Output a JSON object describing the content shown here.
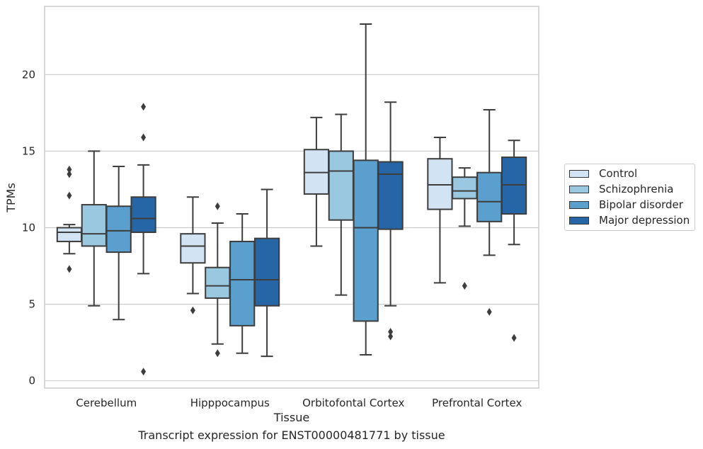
{
  "caption": "Transcript expression for ENST00000481771 by tissue",
  "chart_data": {
    "type": "boxplot",
    "xlabel": "Tissue",
    "ylabel": "TPMs",
    "ylim": [
      -0.4,
      24.2
    ],
    "yticks": [
      0,
      5,
      10,
      15,
      20
    ],
    "grid": "horizontal",
    "legend_position": "right",
    "categories": [
      "Cerebellum",
      "Hipppocampus",
      "Orbitofontal Cortex",
      "Prefrontal Cortex"
    ],
    "series": [
      {
        "name": "Control",
        "color": "#d2e3f3",
        "boxes": [
          {
            "whisker_low": 8.3,
            "q1": 9.1,
            "median": 9.7,
            "q3": 10.0,
            "whisker_high": 10.2,
            "outliers": [
              13.8,
              13.5,
              12.1,
              7.3
            ]
          },
          {
            "whisker_low": 5.7,
            "q1": 7.7,
            "median": 8.8,
            "q3": 9.6,
            "whisker_high": 12.0,
            "outliers": [
              4.6
            ]
          },
          {
            "whisker_low": 8.8,
            "q1": 12.2,
            "median": 13.6,
            "q3": 15.1,
            "whisker_high": 17.2,
            "outliers": []
          },
          {
            "whisker_low": 6.4,
            "q1": 11.2,
            "median": 12.8,
            "q3": 14.5,
            "whisker_high": 15.9,
            "outliers": []
          }
        ]
      },
      {
        "name": "Schizophrenia",
        "color": "#9ac8e0",
        "boxes": [
          {
            "whisker_low": 4.9,
            "q1": 8.8,
            "median": 9.6,
            "q3": 11.5,
            "whisker_high": 15.0,
            "outliers": []
          },
          {
            "whisker_low": 2.4,
            "q1": 5.4,
            "median": 6.2,
            "q3": 7.4,
            "whisker_high": 10.3,
            "outliers": [
              11.4,
              1.8
            ]
          },
          {
            "whisker_low": 5.6,
            "q1": 10.5,
            "median": 13.7,
            "q3": 15.0,
            "whisker_high": 17.4,
            "outliers": []
          },
          {
            "whisker_low": 10.1,
            "q1": 11.9,
            "median": 12.4,
            "q3": 13.3,
            "whisker_high": 13.9,
            "outliers": [
              6.2
            ]
          }
        ]
      },
      {
        "name": "Bipolar disorder",
        "color": "#5a9fcd",
        "boxes": [
          {
            "whisker_low": 4.0,
            "q1": 8.4,
            "median": 9.8,
            "q3": 11.4,
            "whisker_high": 14.0,
            "outliers": []
          },
          {
            "whisker_low": 1.8,
            "q1": 3.6,
            "median": 6.6,
            "q3": 9.1,
            "whisker_high": 10.9,
            "outliers": []
          },
          {
            "whisker_low": 1.7,
            "q1": 3.9,
            "median": 10.0,
            "q3": 14.4,
            "whisker_high": 23.3,
            "outliers": []
          },
          {
            "whisker_low": 8.2,
            "q1": 10.4,
            "median": 11.7,
            "q3": 13.6,
            "whisker_high": 17.7,
            "outliers": [
              4.5
            ]
          }
        ]
      },
      {
        "name": "Major depression",
        "color": "#2666a6",
        "boxes": [
          {
            "whisker_low": 7.0,
            "q1": 9.7,
            "median": 10.6,
            "q3": 12.0,
            "whisker_high": 14.1,
            "outliers": [
              17.9,
              15.9,
              0.6
            ]
          },
          {
            "whisker_low": 1.6,
            "q1": 4.9,
            "median": 6.6,
            "q3": 9.3,
            "whisker_high": 12.5,
            "outliers": []
          },
          {
            "whisker_low": 4.9,
            "q1": 9.9,
            "median": 13.5,
            "q3": 14.3,
            "whisker_high": 18.2,
            "outliers": [
              3.2,
              2.9
            ]
          },
          {
            "whisker_low": 8.9,
            "q1": 10.9,
            "median": 12.8,
            "q3": 14.6,
            "whisker_high": 15.7,
            "outliers": [
              2.8
            ]
          }
        ]
      }
    ]
  }
}
